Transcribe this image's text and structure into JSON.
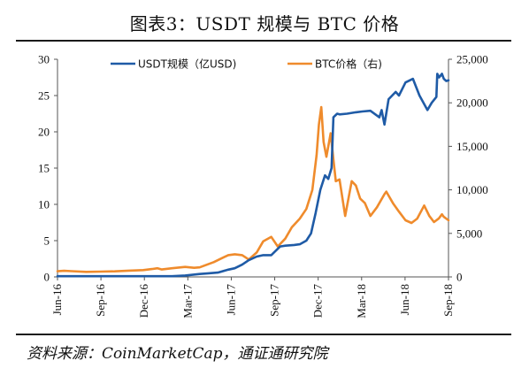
{
  "figure": {
    "title": "图表3：USDT 规模与 BTC 价格",
    "source": "资料来源：CoinMarketCap，通证通研究院"
  },
  "colors": {
    "usdt": "#1f5ba6",
    "btc": "#ef8b2c",
    "axis": "#555555",
    "rule": "#1a1a1a"
  },
  "chart_data": {
    "type": "line",
    "title": "",
    "xlabel": "",
    "x_ticks": [
      "Jun-16",
      "Sep-16",
      "Dec-16",
      "Mar-17",
      "Jun-17",
      "Sep-17",
      "Dec-17",
      "Mar-18",
      "Jun-18",
      "Sep-18"
    ],
    "y_left": {
      "ylim": [
        0,
        30
      ],
      "ticks": [
        "0",
        "5",
        "10",
        "15",
        "20",
        "25",
        "30"
      ]
    },
    "y_right": {
      "ylim": [
        0,
        25000
      ],
      "ticks": [
        "0",
        "5,000",
        "10,000",
        "15,000",
        "20,000",
        "25,000"
      ]
    },
    "legend": {
      "placement": "top"
    },
    "series": [
      {
        "name": "USDT规模（亿USD)",
        "axis": "left",
        "x": [
          "2016-06-01",
          "2016-07-01",
          "2016-08-01",
          "2016-09-01",
          "2016-10-01",
          "2016-11-01",
          "2016-12-01",
          "2017-01-01",
          "2017-02-01",
          "2017-03-01",
          "2017-04-01",
          "2017-04-20",
          "2017-05-10",
          "2017-06-01",
          "2017-06-15",
          "2017-07-01",
          "2017-07-15",
          "2017-08-01",
          "2017-08-15",
          "2017-09-01",
          "2017-09-20",
          "2017-10-01",
          "2017-10-20",
          "2017-11-01",
          "2017-11-15",
          "2017-11-25",
          "2017-12-05",
          "2017-12-15",
          "2017-12-25",
          "2018-01-01",
          "2018-01-08",
          "2018-01-12",
          "2018-01-20",
          "2018-01-25",
          "2018-02-10",
          "2018-03-01",
          "2018-03-15",
          "2018-04-01",
          "2018-04-20",
          "2018-04-25",
          "2018-05-01",
          "2018-05-10",
          "2018-05-25",
          "2018-06-01",
          "2018-06-15",
          "2018-07-01",
          "2018-07-15",
          "2018-08-01",
          "2018-08-10",
          "2018-08-20",
          "2018-08-22",
          "2018-08-26",
          "2018-09-01",
          "2018-09-05",
          "2018-09-10",
          "2018-09-15"
        ],
        "values": [
          0.1,
          0.1,
          0.1,
          0.1,
          0.1,
          0.1,
          0.1,
          0.1,
          0.1,
          0.2,
          0.4,
          0.5,
          0.6,
          1.0,
          1.2,
          1.7,
          2.3,
          2.8,
          3.0,
          3.0,
          4.2,
          4.3,
          4.4,
          4.5,
          5.0,
          6.0,
          8.8,
          12.0,
          14.0,
          13.5,
          15.0,
          22.0,
          22.5,
          22.4,
          22.5,
          22.7,
          22.8,
          22.9,
          22.0,
          23.0,
          21.0,
          24.5,
          25.5,
          25.0,
          26.8,
          27.3,
          25.0,
          23.0,
          24.0,
          24.8,
          28.0,
          27.5,
          28.0,
          27.3,
          27.0,
          27.1
        ]
      },
      {
        "name": "BTC价格（右)",
        "axis": "right",
        "x": [
          "2016-06-01",
          "2016-06-15",
          "2016-07-01",
          "2016-08-01",
          "2016-09-01",
          "2016-10-01",
          "2016-11-01",
          "2016-12-01",
          "2016-12-20",
          "2017-01-01",
          "2017-01-10",
          "2017-02-01",
          "2017-03-01",
          "2017-03-20",
          "2017-04-01",
          "2017-05-01",
          "2017-05-20",
          "2017-06-01",
          "2017-06-15",
          "2017-07-01",
          "2017-07-15",
          "2017-08-01",
          "2017-08-15",
          "2017-09-01",
          "2017-09-15",
          "2017-10-01",
          "2017-10-15",
          "2017-11-01",
          "2017-11-15",
          "2017-11-28",
          "2017-12-07",
          "2017-12-12",
          "2017-12-17",
          "2017-12-22",
          "2017-12-28",
          "2018-01-06",
          "2018-01-12",
          "2018-01-17",
          "2018-01-25",
          "2018-02-06",
          "2018-02-20",
          "2018-03-01",
          "2018-03-10",
          "2018-03-20",
          "2018-04-01",
          "2018-04-15",
          "2018-05-01",
          "2018-05-05",
          "2018-05-20",
          "2018-06-01",
          "2018-06-15",
          "2018-06-28",
          "2018-07-10",
          "2018-07-25",
          "2018-08-05",
          "2018-08-15",
          "2018-08-25",
          "2018-09-01",
          "2018-09-05",
          "2018-09-15"
        ],
        "values": [
          650,
          700,
          660,
          580,
          610,
          640,
          720,
          780,
          900,
          1000,
          850,
          1000,
          1150,
          1050,
          1100,
          1700,
          2200,
          2500,
          2600,
          2500,
          2000,
          2800,
          4100,
          4600,
          3500,
          4400,
          5700,
          6700,
          7800,
          10000,
          14000,
          17500,
          19500,
          15500,
          13800,
          16500,
          13500,
          11000,
          11200,
          7000,
          11000,
          10500,
          9000,
          8500,
          7000,
          8000,
          9500,
          9800,
          8400,
          7500,
          6500,
          6200,
          6700,
          8200,
          7000,
          6300,
          6700,
          7200,
          6900,
          6500
        ]
      }
    ]
  }
}
